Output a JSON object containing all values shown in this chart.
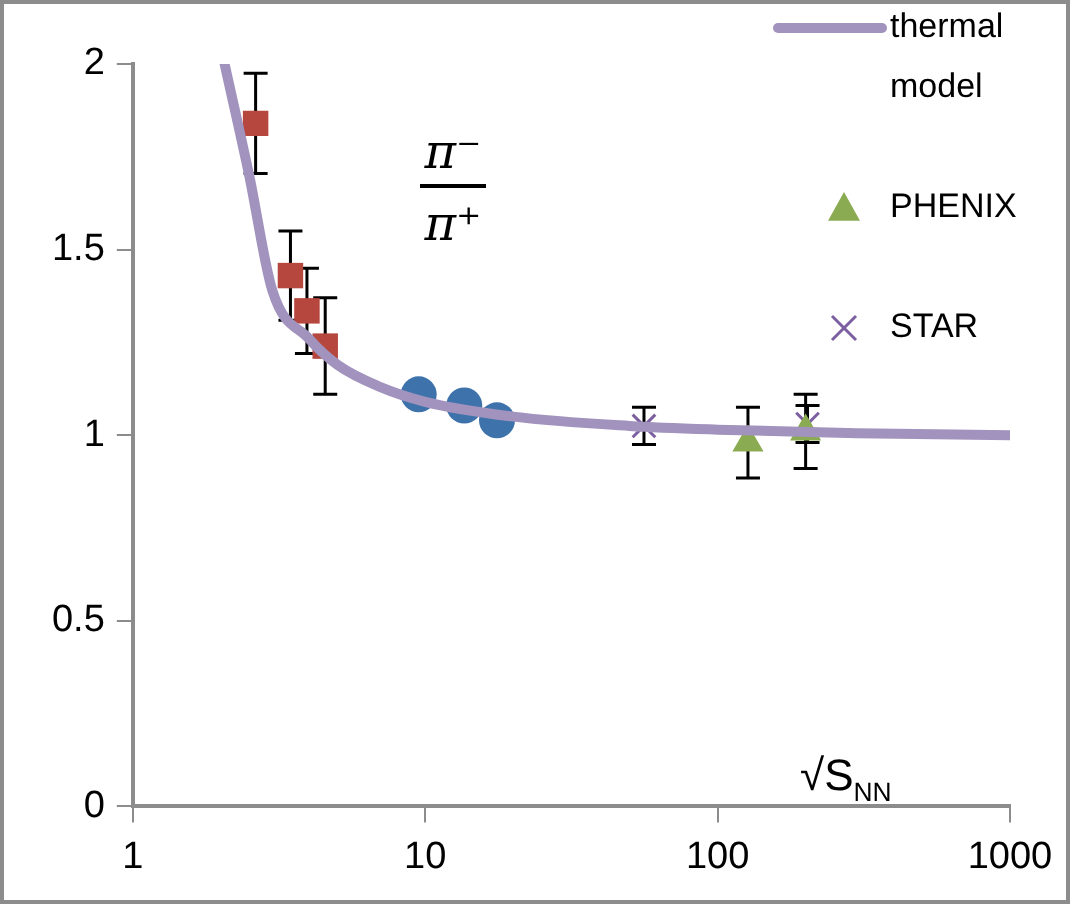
{
  "chart_data": {
    "type": "scatter",
    "xlabel": "√S$_{NN}$",
    "log": "x",
    "xlim": [
      1,
      1000
    ],
    "xticks": [
      1,
      10,
      100,
      1000
    ],
    "ylim": [
      0,
      2
    ],
    "yticks": [
      0,
      0.5,
      1,
      1.5,
      2
    ],
    "grid": false,
    "legend": "top right",
    "annotations": [
      "π⁻",
      "π⁺"
    ],
    "series": [
      {
        "name": "thermal model",
        "type": "line",
        "marker": "none",
        "color": "#a193bd",
        "x": [
          2.06,
          2.5,
          3.0,
          4,
          5,
          7,
          10,
          20,
          50,
          100,
          300,
          1000
        ],
        "values": [
          2.0,
          1.7,
          1.39,
          1.26,
          1.19,
          1.13,
          1.09,
          1.05,
          1.025,
          1.015,
          1.005,
          1.0
        ]
      },
      {
        "marker": "square",
        "color": "#b5473f",
        "x": [
          2.63,
          3.46,
          3.94,
          4.55
        ],
        "values": [
          1.84,
          1.43,
          1.335,
          1.24
        ],
        "errors": [
          0.135,
          0.12,
          0.115,
          0.13
        ]
      },
      {
        "marker": "circle",
        "color": "#3e72ab",
        "x": [
          9.5,
          13.6,
          17.6
        ],
        "values": [
          1.11,
          1.08,
          1.04
        ]
      },
      {
        "name": "PHENIX",
        "marker": "triangle",
        "color": "#8aab52",
        "x": [
          127,
          200
        ],
        "values": [
          0.98,
          1.01
        ],
        "errors": [
          0.095,
          0.1
        ]
      },
      {
        "name": "STAR",
        "marker": "cross",
        "color": "#7c5fa0",
        "x": [
          56,
          203
        ],
        "values": [
          1.025,
          1.03
        ],
        "errors": [
          0.05,
          0.05
        ]
      }
    ]
  }
}
